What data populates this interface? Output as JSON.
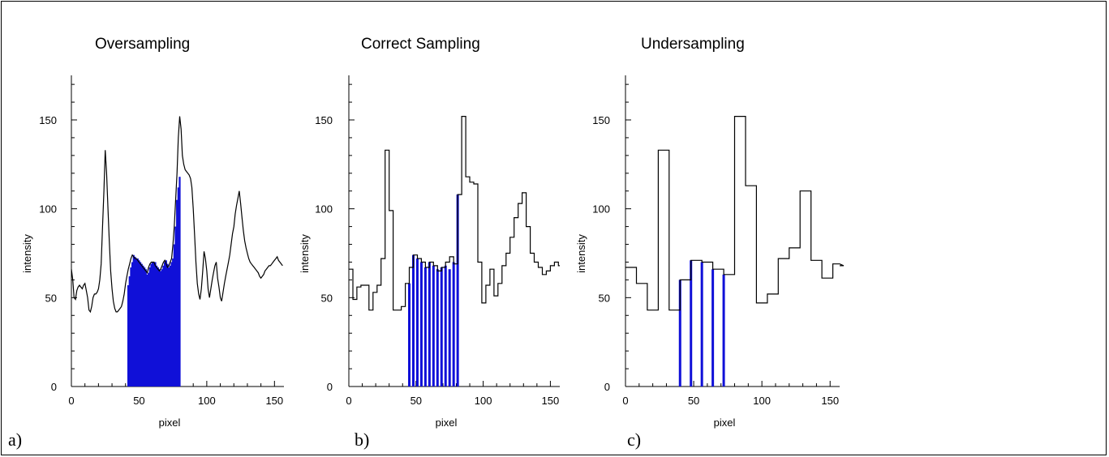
{
  "chart_data": [
    {
      "type": "line",
      "panel_label": "a)",
      "title": "Oversampling",
      "xlabel": "pixel",
      "ylabel": "intensity",
      "xlim": [
        0,
        157
      ],
      "ylim": [
        0,
        175
      ],
      "xticks": [
        "0",
        "50",
        "100",
        "150"
      ],
      "yticks": [
        "0",
        "50",
        "100",
        "150"
      ],
      "profile_style": "line",
      "profile": {
        "x": [
          0,
          1,
          2,
          3,
          4,
          5,
          6,
          7,
          8,
          9,
          10,
          11,
          12,
          13,
          14,
          15,
          16,
          17,
          18,
          19,
          20,
          21,
          22,
          23,
          24,
          25,
          26,
          27,
          28,
          29,
          30,
          31,
          32,
          33,
          34,
          35,
          36,
          37,
          38,
          39,
          40,
          41,
          42,
          43,
          44,
          45,
          46,
          47,
          48,
          49,
          50,
          51,
          52,
          53,
          54,
          55,
          56,
          57,
          58,
          59,
          60,
          61,
          62,
          63,
          64,
          65,
          66,
          67,
          68,
          69,
          70,
          71,
          72,
          73,
          74,
          75,
          76,
          77,
          78,
          79,
          80,
          81,
          82,
          83,
          84,
          85,
          86,
          87,
          88,
          89,
          90,
          91,
          92,
          93,
          94,
          95,
          96,
          97,
          98,
          99,
          100,
          101,
          102,
          103,
          104,
          105,
          106,
          107,
          108,
          109,
          110,
          111,
          112,
          113,
          114,
          115,
          116,
          117,
          118,
          119,
          120,
          121,
          122,
          123,
          124,
          125,
          126,
          127,
          128,
          129,
          130,
          131,
          132,
          133,
          134,
          135,
          136,
          137,
          138,
          139,
          140,
          141,
          142,
          143,
          144,
          145,
          146,
          147,
          148,
          149,
          150,
          151,
          152,
          153,
          154,
          155,
          156
        ],
        "y": [
          66,
          60,
          50,
          49,
          54,
          56,
          57,
          56,
          55,
          57,
          58,
          54,
          50,
          43,
          42,
          45,
          50,
          52,
          52,
          53,
          55,
          60,
          69,
          90,
          110,
          133,
          120,
          100,
          82,
          65,
          55,
          48,
          44,
          42,
          42,
          43,
          44,
          45,
          48,
          52,
          58,
          62,
          66,
          69,
          72,
          74,
          73,
          72,
          72,
          71,
          70,
          69,
          68,
          67,
          66,
          65,
          64,
          67,
          69,
          70,
          70,
          70,
          68,
          67,
          66,
          65,
          66,
          68,
          70,
          71,
          69,
          67,
          68,
          70,
          72,
          80,
          90,
          105,
          120,
          140,
          152,
          145,
          130,
          125,
          122,
          121,
          120,
          119,
          117,
          112,
          100,
          85,
          70,
          58,
          52,
          49,
          55,
          65,
          76,
          72,
          65,
          55,
          50,
          55,
          60,
          64,
          68,
          70,
          61,
          56,
          50,
          48,
          53,
          58,
          62,
          66,
          70,
          74,
          80,
          86,
          90,
          97,
          102,
          106,
          110,
          103,
          95,
          88,
          82,
          78,
          75,
          72,
          70,
          69,
          68,
          67,
          66,
          65,
          64,
          62,
          61,
          62,
          63,
          65,
          66,
          67,
          68,
          68,
          69,
          70,
          71,
          72,
          73,
          71,
          70,
          69,
          68
        ]
      },
      "samples": {
        "x": [
          42,
          43,
          44,
          45,
          46,
          47,
          48,
          49,
          50,
          51,
          52,
          53,
          54,
          55,
          56,
          57,
          58,
          59,
          60,
          61,
          62,
          63,
          64,
          65,
          66,
          67,
          68,
          69,
          70,
          71,
          72,
          73,
          74,
          75,
          76,
          77,
          78,
          79,
          80
        ],
        "y": [
          57,
          62,
          67,
          70,
          74,
          73,
          72,
          72,
          71,
          70,
          69,
          68,
          67,
          66,
          63,
          64,
          67,
          69,
          70,
          70,
          70,
          68,
          67,
          66,
          65,
          66,
          68,
          70,
          71,
          69,
          67,
          68,
          70,
          72,
          80,
          90,
          105,
          112,
          118
        ]
      }
    },
    {
      "type": "line",
      "panel_label": "b)",
      "title": "Correct Sampling",
      "xlabel": "pixel",
      "ylabel": "intensity",
      "xlim": [
        0,
        157
      ],
      "ylim": [
        0,
        175
      ],
      "xticks": [
        "0",
        "50",
        "100",
        "150"
      ],
      "yticks": [
        "0",
        "50",
        "100",
        "150"
      ],
      "profile_style": "step",
      "profile": {
        "x": [
          0,
          3,
          6,
          9,
          12,
          15,
          18,
          21,
          24,
          27,
          30,
          33,
          36,
          39,
          42,
          45,
          48,
          51,
          54,
          57,
          60,
          63,
          66,
          69,
          72,
          75,
          78,
          81,
          84,
          87,
          90,
          93,
          96,
          99,
          102,
          105,
          108,
          111,
          114,
          117,
          120,
          123,
          126,
          129,
          132,
          135,
          138,
          141,
          144,
          147,
          150,
          153,
          156
        ],
        "y": [
          66,
          49,
          56,
          57,
          57,
          43,
          53,
          57,
          72,
          133,
          99,
          43,
          43,
          45,
          58,
          67,
          74,
          72,
          70,
          67,
          70,
          68,
          65,
          67,
          70,
          73,
          69,
          108,
          152,
          118,
          115,
          114,
          70,
          47,
          57,
          66,
          51,
          58,
          68,
          75,
          84,
          95,
          103,
          109,
          90,
          75,
          70,
          67,
          63,
          65,
          68,
          70,
          68
        ]
      },
      "samples": {
        "x": [
          45,
          48,
          51,
          54,
          57,
          60,
          63,
          66,
          69,
          72,
          75,
          78,
          81
        ],
        "y": [
          58,
          74,
          72,
          70,
          67,
          70,
          68,
          66,
          67,
          68,
          66,
          70,
          108
        ]
      }
    },
    {
      "type": "line",
      "panel_label": "c)",
      "title": "Undersampling",
      "xlabel": "pixel",
      "ylabel": "intensity",
      "xlim": [
        0,
        157
      ],
      "ylim": [
        0,
        175
      ],
      "xticks": [
        "0",
        "50",
        "100",
        "150"
      ],
      "yticks": [
        "0",
        "50",
        "100",
        "150"
      ],
      "profile_style": "step",
      "profile": {
        "x": [
          0,
          8,
          16,
          24,
          32,
          40,
          48,
          56,
          64,
          72,
          80,
          88,
          96,
          104,
          112,
          120,
          128,
          136,
          144,
          152,
          160
        ],
        "y": [
          67,
          58,
          43,
          133,
          43,
          60,
          71,
          70,
          66,
          63,
          152,
          113,
          47,
          52,
          72,
          78,
          110,
          71,
          61,
          69,
          68
        ]
      },
      "samples": {
        "x": [
          40,
          48,
          56,
          64,
          72
        ],
        "y": [
          60,
          71,
          70,
          66,
          63
        ]
      }
    }
  ],
  "colors": {
    "samples": "#1010d8",
    "line": "#000000",
    "background": "#ffffff"
  }
}
